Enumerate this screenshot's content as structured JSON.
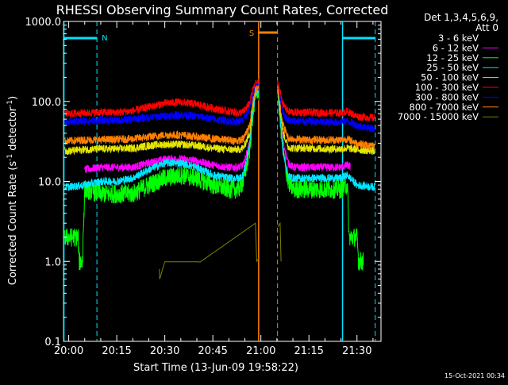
{
  "chart_data": {
    "type": "line",
    "title": "RHESSI Observing Summary Count Rates, Corrected",
    "xlabel": "Start Time (13-Jun-09 19:58:22)",
    "ylabel": "Corrected Count Rate (s⁻¹ detector⁻¹)",
    "ylabel_main": "Corrected Count Rate (s",
    "ylabel_sup1": "-1",
    "ylabel_mid": " detector",
    "ylabel_sup2": "-1",
    "ylabel_end": ")",
    "y_scale": "log",
    "ylim": [
      0.1,
      1000
    ],
    "y_ticks": [
      "0.1",
      "1.0",
      "10.0",
      "100.0",
      "1000.0"
    ],
    "x_start_minutes": 1198.37,
    "xlim_minutes": [
      1198.37,
      1297.5
    ],
    "x_ticks": [
      {
        "label": "20:00",
        "minute": 1200
      },
      {
        "label": "20:15",
        "minute": 1215
      },
      {
        "label": "20:30",
        "minute": 1230
      },
      {
        "label": "20:45",
        "minute": 1245
      },
      {
        "label": "21:00",
        "minute": 1260
      },
      {
        "label": "21:15",
        "minute": 1275
      },
      {
        "label": "21:30",
        "minute": 1290
      }
    ],
    "legend_title1": "Det 1,3,4,5,6,9,",
    "legend_title2": "Att 0",
    "legend_placement": "right",
    "timestamp": "15-Oct-2021 00:34",
    "markers": {
      "night_label": "N",
      "saa_label": "S",
      "night_color": "#00e5ff",
      "saa_color": "#ff8000",
      "night_bars": [
        [
          1198.5,
          1208.8
        ],
        [
          1285.5,
          1295.7
        ]
      ],
      "saa_bar": [
        1259.3,
        1265.2
      ],
      "night_solid_lines": [
        1198.5,
        1285.5
      ],
      "night_dashed_lines": [
        1208.8,
        1295.7
      ],
      "saa_solid_line": 1259.3,
      "saa_dashed_line": 1265.2
    },
    "gap": [
      1259.3,
      1265.2
    ],
    "series": [
      {
        "name": "3 - 6 keV",
        "color": "#000000",
        "points": [
          [
            1204.5,
            2
          ],
          [
            1205,
            8
          ],
          [
            1210,
            7.5
          ],
          [
            1215,
            7.5
          ],
          [
            1220,
            8
          ],
          [
            1225,
            9.5
          ],
          [
            1230,
            11
          ],
          [
            1235,
            11
          ],
          [
            1240,
            10
          ],
          [
            1245,
            8.5
          ],
          [
            1250,
            8
          ],
          [
            1253,
            8
          ],
          [
            1254.5,
            9
          ],
          [
            1256.5,
            25
          ],
          [
            1257.5,
            70
          ],
          [
            1258.3,
            120
          ],
          [
            1259.2,
            130
          ],
          [
            1265.3,
            130
          ],
          [
            1266,
            60
          ],
          [
            1267,
            22
          ],
          [
            1268.5,
            10
          ],
          [
            1270,
            8.5
          ],
          [
            1275,
            8
          ],
          [
            1280,
            8
          ],
          [
            1285,
            8
          ],
          [
            1287,
            8.5
          ],
          [
            1288,
            8
          ]
        ]
      },
      {
        "name": "6 - 12 keV",
        "color": "#ff00ff",
        "points": [
          [
            1205,
            14
          ],
          [
            1210,
            15
          ],
          [
            1215,
            15
          ],
          [
            1220,
            15
          ],
          [
            1225,
            17
          ],
          [
            1230,
            19
          ],
          [
            1235,
            19
          ],
          [
            1240,
            18
          ],
          [
            1245,
            16
          ],
          [
            1250,
            15
          ],
          [
            1253,
            15
          ],
          [
            1254.5,
            16
          ],
          [
            1256.5,
            30
          ],
          [
            1257.5,
            75
          ],
          [
            1258.3,
            140
          ],
          [
            1259.2,
            150
          ],
          [
            1265.3,
            150
          ],
          [
            1266,
            70
          ],
          [
            1267,
            30
          ],
          [
            1268.5,
            17
          ],
          [
            1270,
            15
          ],
          [
            1275,
            15
          ],
          [
            1280,
            15
          ],
          [
            1285,
            15
          ],
          [
            1287,
            16
          ],
          [
            1288,
            15
          ]
        ]
      },
      {
        "name": "12 - 25 keV",
        "color": "#00ff00",
        "points": [
          [
            1198.8,
            2
          ],
          [
            1203,
            2
          ],
          [
            1203.2,
            1
          ],
          [
            1204.3,
            1
          ],
          [
            1204.5,
            2
          ],
          [
            1205,
            8
          ],
          [
            1210,
            7
          ],
          [
            1215,
            7
          ],
          [
            1220,
            7
          ],
          [
            1225,
            9
          ],
          [
            1230,
            11
          ],
          [
            1235,
            12
          ],
          [
            1240,
            11
          ],
          [
            1245,
            9
          ],
          [
            1250,
            8
          ],
          [
            1253,
            8
          ],
          [
            1254.5,
            10
          ],
          [
            1256.5,
            25
          ],
          [
            1257.5,
            70
          ],
          [
            1258.3,
            130
          ],
          [
            1259.2,
            140
          ],
          [
            1265.3,
            140
          ],
          [
            1266,
            60
          ],
          [
            1267,
            22
          ],
          [
            1268.5,
            10
          ],
          [
            1270,
            8
          ],
          [
            1275,
            8
          ],
          [
            1280,
            8
          ],
          [
            1285,
            8
          ],
          [
            1287,
            9
          ],
          [
            1287.5,
            2
          ],
          [
            1290,
            2
          ],
          [
            1290.5,
            1
          ],
          [
            1292,
            1
          ]
        ]
      },
      {
        "name": "25 - 50 keV",
        "color": "#00e5ff",
        "points": [
          [
            1198.8,
            8.5
          ],
          [
            1200,
            8.5
          ],
          [
            1205,
            9
          ],
          [
            1210,
            10
          ],
          [
            1215,
            10
          ],
          [
            1220,
            11
          ],
          [
            1225,
            14
          ],
          [
            1230,
            17
          ],
          [
            1235,
            17
          ],
          [
            1240,
            15
          ],
          [
            1245,
            12
          ],
          [
            1250,
            11
          ],
          [
            1253,
            11
          ],
          [
            1254.5,
            12
          ],
          [
            1256.5,
            30
          ],
          [
            1257.5,
            70
          ],
          [
            1258.3,
            130
          ],
          [
            1259.2,
            140
          ],
          [
            1265.3,
            140
          ],
          [
            1266,
            60
          ],
          [
            1267,
            22
          ],
          [
            1268.5,
            12
          ],
          [
            1270,
            11
          ],
          [
            1275,
            11
          ],
          [
            1280,
            11
          ],
          [
            1285,
            11
          ],
          [
            1287,
            12
          ],
          [
            1290,
            9
          ],
          [
            1295.5,
            8.5
          ]
        ]
      },
      {
        "name": "50 - 100 keV",
        "color": "#e5e500",
        "points": [
          [
            1198.8,
            24
          ],
          [
            1200,
            24
          ],
          [
            1205,
            25
          ],
          [
            1210,
            25.5
          ],
          [
            1215,
            25.5
          ],
          [
            1220,
            26
          ],
          [
            1225,
            28
          ],
          [
            1230,
            29
          ],
          [
            1235,
            29
          ],
          [
            1240,
            28
          ],
          [
            1245,
            26
          ],
          [
            1250,
            25
          ],
          [
            1253,
            25
          ],
          [
            1254.5,
            26
          ],
          [
            1256.5,
            40
          ],
          [
            1257.5,
            90
          ],
          [
            1258.3,
            140
          ],
          [
            1259.2,
            150
          ],
          [
            1265.3,
            150
          ],
          [
            1266,
            80
          ],
          [
            1267,
            40
          ],
          [
            1268.5,
            27
          ],
          [
            1270,
            26
          ],
          [
            1275,
            26
          ],
          [
            1280,
            25.5
          ],
          [
            1285,
            25.5
          ],
          [
            1287,
            26
          ],
          [
            1290,
            25
          ],
          [
            1295.5,
            24
          ]
        ]
      },
      {
        "name": "100 - 300 keV",
        "color": "#ff0000",
        "points": [
          [
            1198.8,
            70
          ],
          [
            1200,
            70
          ],
          [
            1205,
            72
          ],
          [
            1210,
            73
          ],
          [
            1215,
            73
          ],
          [
            1220,
            76
          ],
          [
            1225,
            85
          ],
          [
            1230,
            95
          ],
          [
            1235,
            98
          ],
          [
            1240,
            92
          ],
          [
            1245,
            82
          ],
          [
            1250,
            75
          ],
          [
            1253,
            72
          ],
          [
            1254.5,
            74
          ],
          [
            1256.5,
            95
          ],
          [
            1257.5,
            140
          ],
          [
            1258.3,
            165
          ],
          [
            1259.2,
            170
          ],
          [
            1265.3,
            170
          ],
          [
            1266,
            130
          ],
          [
            1267,
            90
          ],
          [
            1268.5,
            75
          ],
          [
            1270,
            73
          ],
          [
            1275,
            73
          ],
          [
            1280,
            72
          ],
          [
            1285,
            72
          ],
          [
            1287,
            75
          ],
          [
            1290,
            65
          ],
          [
            1295.5,
            62
          ]
        ]
      },
      {
        "name": "300 - 800 keV",
        "color": "#0000ff",
        "points": [
          [
            1198.8,
            55
          ],
          [
            1200,
            55
          ],
          [
            1205,
            57
          ],
          [
            1210,
            58
          ],
          [
            1215,
            58
          ],
          [
            1220,
            60
          ],
          [
            1225,
            63
          ],
          [
            1230,
            66
          ],
          [
            1235,
            68
          ],
          [
            1240,
            65
          ],
          [
            1245,
            60
          ],
          [
            1250,
            57
          ],
          [
            1253,
            56
          ],
          [
            1254.5,
            58
          ],
          [
            1256.5,
            80
          ],
          [
            1257.5,
            120
          ],
          [
            1258.3,
            150
          ],
          [
            1259.2,
            155
          ],
          [
            1265.3,
            155
          ],
          [
            1266,
            110
          ],
          [
            1267,
            70
          ],
          [
            1268.5,
            58
          ],
          [
            1270,
            57
          ],
          [
            1275,
            56
          ],
          [
            1280,
            55
          ],
          [
            1285,
            55
          ],
          [
            1287,
            57
          ],
          [
            1290,
            50
          ],
          [
            1295.5,
            45
          ]
        ]
      },
      {
        "name": "800 - 7000 keV",
        "color": "#ff8000",
        "points": [
          [
            1198.8,
            32
          ],
          [
            1200,
            32
          ],
          [
            1205,
            33
          ],
          [
            1210,
            33
          ],
          [
            1215,
            33.5
          ],
          [
            1220,
            34
          ],
          [
            1225,
            36
          ],
          [
            1230,
            38
          ],
          [
            1235,
            38
          ],
          [
            1240,
            36
          ],
          [
            1245,
            34
          ],
          [
            1250,
            33
          ],
          [
            1253,
            32
          ],
          [
            1254.5,
            34
          ],
          [
            1256.5,
            50
          ],
          [
            1257.5,
            100
          ],
          [
            1258.3,
            140
          ],
          [
            1259.2,
            145
          ],
          [
            1265.3,
            145
          ],
          [
            1266,
            90
          ],
          [
            1267,
            50
          ],
          [
            1268.5,
            35
          ],
          [
            1270,
            34
          ],
          [
            1275,
            33
          ],
          [
            1280,
            33
          ],
          [
            1285,
            33
          ],
          [
            1287,
            34
          ],
          [
            1290,
            30
          ],
          [
            1295.5,
            27
          ]
        ]
      },
      {
        "name": "7000 - 15000 keV",
        "color": "#808000",
        "points": [
          [
            1228.3,
            0.8
          ],
          [
            1228.4,
            0.6
          ],
          [
            1230,
            0.99
          ],
          [
            1240,
            0.99
          ],
          [
            1241,
            0.98
          ],
          [
            1258.3,
            3
          ],
          [
            1258.7,
            1
          ],
          [
            1266,
            3
          ],
          [
            1266.3,
            1
          ]
        ]
      }
    ]
  }
}
